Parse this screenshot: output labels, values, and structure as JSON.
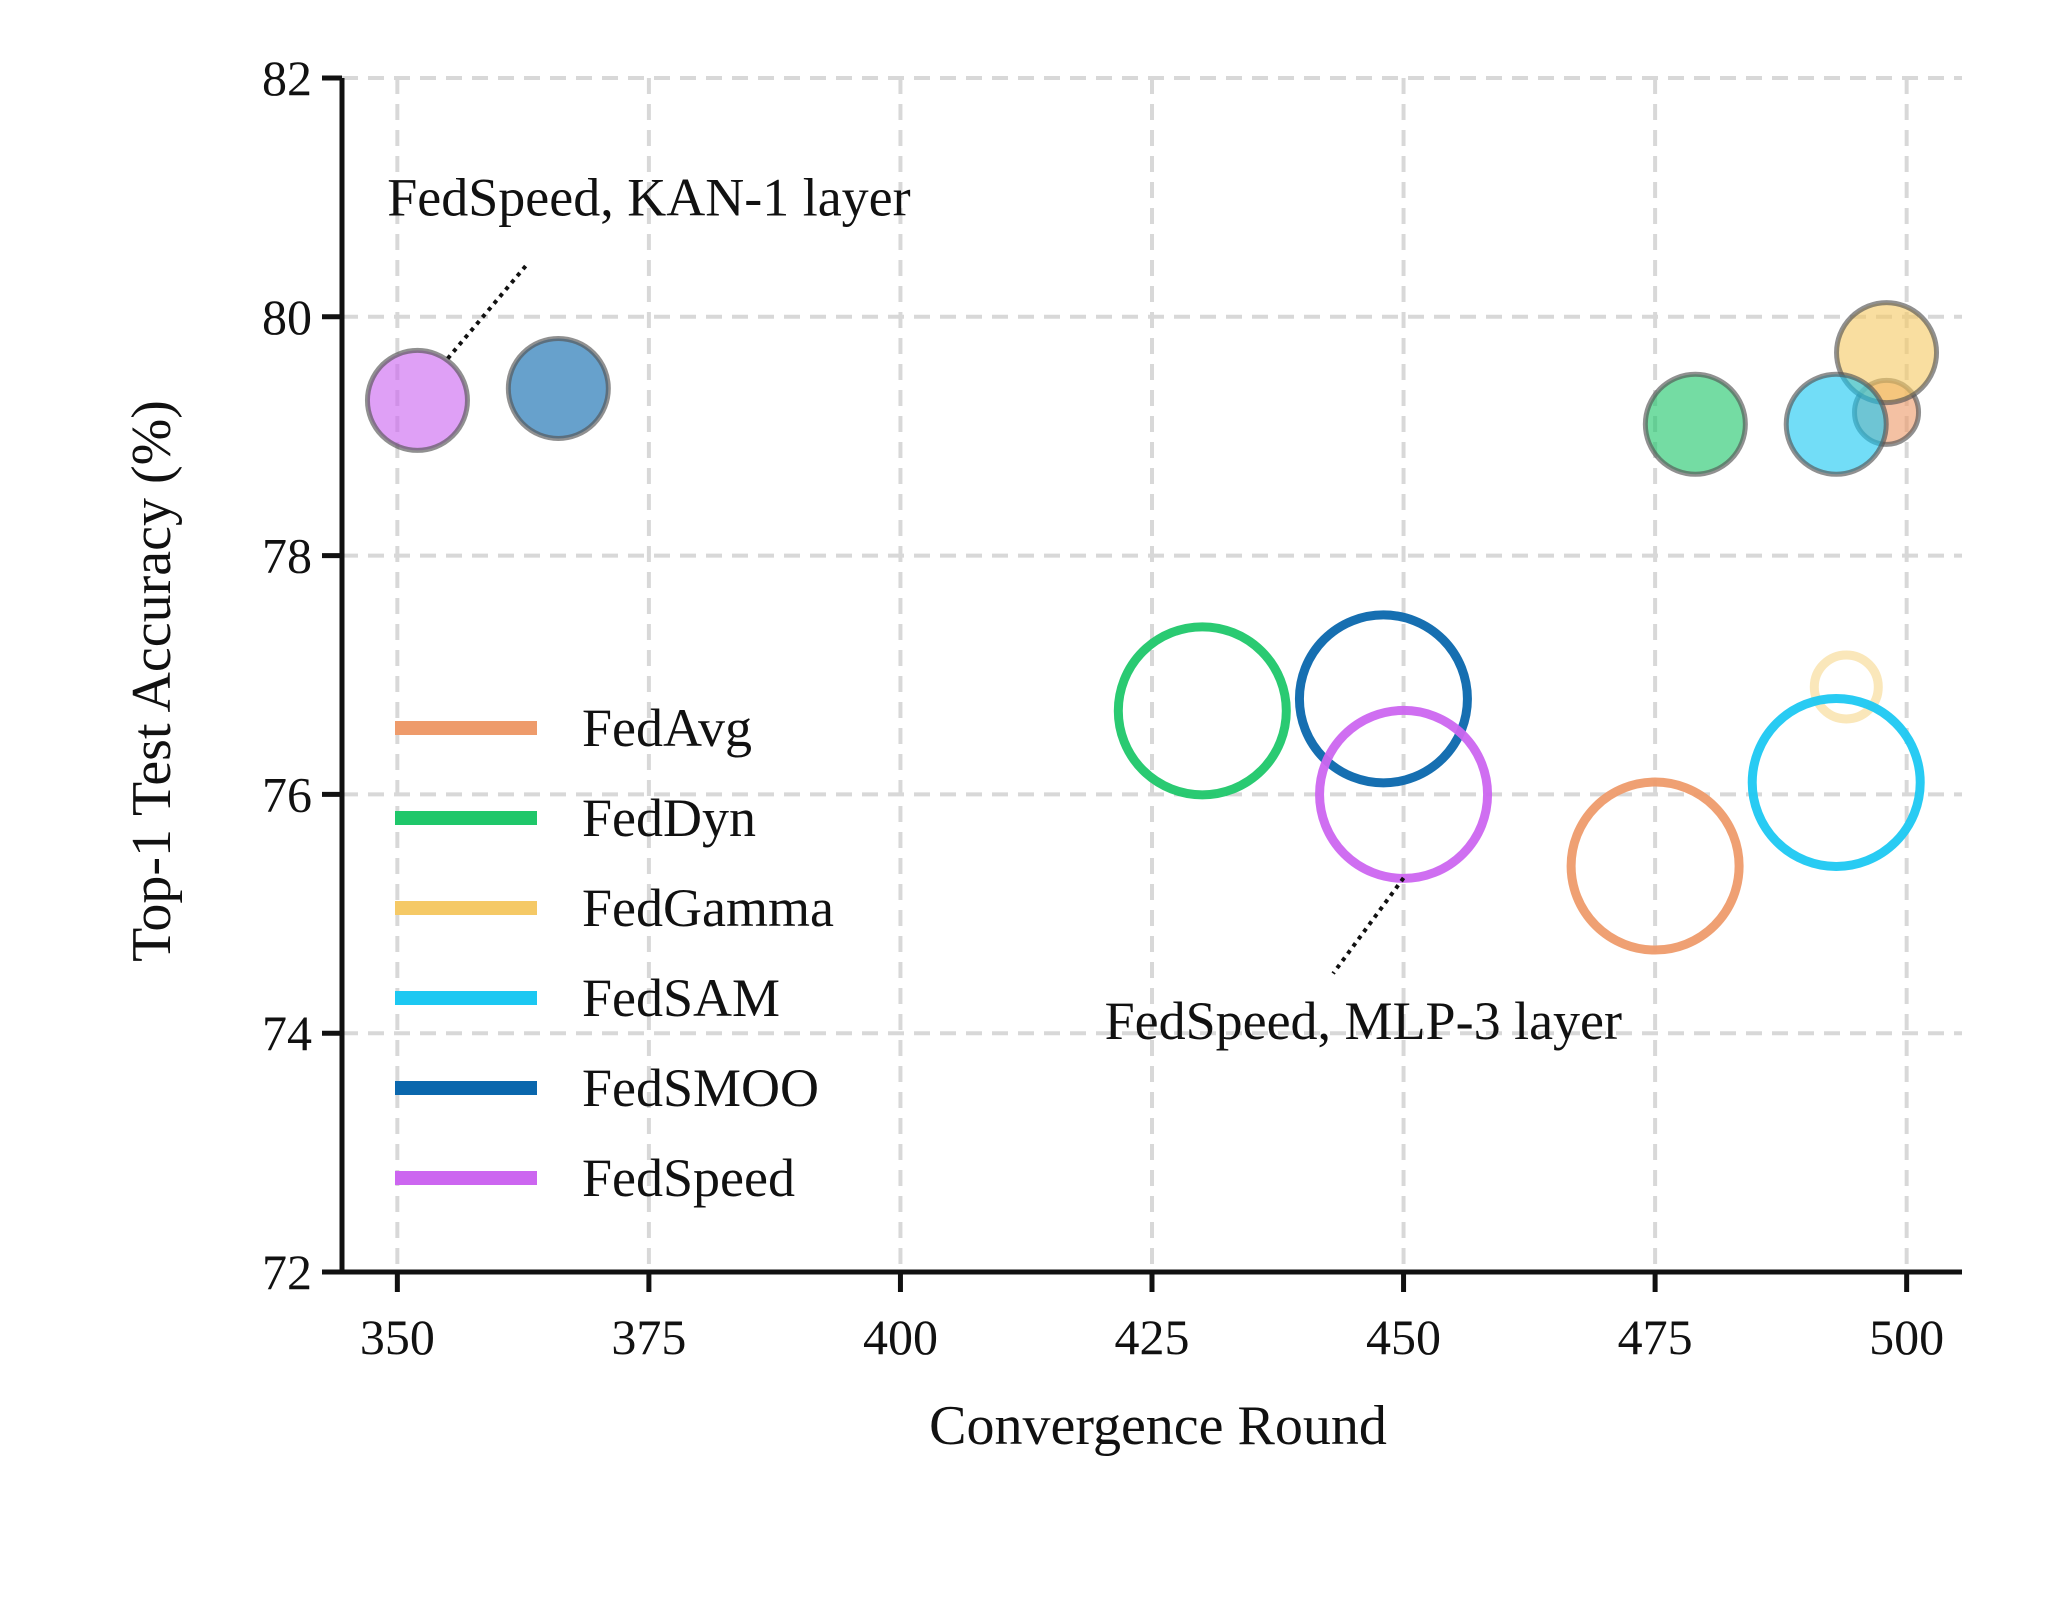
{
  "chart_data": {
    "type": "scatter",
    "title": "",
    "xlabel": "Convergence Round",
    "ylabel": "Top-1 Test Accuracy (%)",
    "xlim": [
      344.5,
      505.5
    ],
    "ylim": [
      72,
      82
    ],
    "xticks": [
      350,
      375,
      400,
      425,
      450,
      475,
      500
    ],
    "yticks": [
      72,
      74,
      76,
      78,
      80,
      82
    ],
    "grid": true,
    "legend_position": "lower-left",
    "series": [
      {
        "name": "FedAvg",
        "color": "#ee9b6b",
        "points": [
          {
            "x": 475,
            "y": 75.4,
            "style": "ring",
            "size": "large"
          },
          {
            "x": 498,
            "y": 79.2,
            "style": "filled",
            "size": "small"
          }
        ]
      },
      {
        "name": "FedDyn",
        "color": "#1fc76a",
        "points": [
          {
            "x": 430,
            "y": 76.7,
            "style": "ring",
            "size": "large"
          },
          {
            "x": 479,
            "y": 79.1,
            "style": "filled",
            "size": "medium"
          }
        ]
      },
      {
        "name": "FedGamma",
        "color": "#f5c966",
        "points": [
          {
            "x": 494,
            "y": 76.9,
            "style": "ring",
            "size": "small"
          },
          {
            "x": 498,
            "y": 79.7,
            "style": "filled",
            "size": "medium"
          }
        ]
      },
      {
        "name": "FedSAM",
        "color": "#1cc8f2",
        "points": [
          {
            "x": 493,
            "y": 76.1,
            "style": "ring",
            "size": "large"
          },
          {
            "x": 493,
            "y": 79.1,
            "style": "filled",
            "size": "medium"
          }
        ]
      },
      {
        "name": "FedSMOO",
        "color": "#0a67ad",
        "points": [
          {
            "x": 448,
            "y": 76.8,
            "style": "ring",
            "size": "large"
          },
          {
            "x": 366,
            "y": 79.4,
            "style": "filled",
            "size": "medium"
          }
        ]
      },
      {
        "name": "FedSpeed",
        "color": "#cc66f0",
        "points": [
          {
            "x": 450,
            "y": 76.0,
            "style": "ring",
            "size": "large"
          },
          {
            "x": 352,
            "y": 79.3,
            "style": "filled",
            "size": "medium"
          }
        ]
      }
    ],
    "annotations": [
      {
        "text": "FedSpeed, KAN-1 layer",
        "target_x": 355,
        "target_y": 79.65,
        "line_end_x": 363,
        "line_end_y": 80.45,
        "text_x": 349,
        "text_y": 80.85,
        "anchor": "start"
      },
      {
        "text": "FedSpeed, MLP-3 layer",
        "target_x": 450,
        "target_y": 75.3,
        "line_end_x": 443,
        "line_end_y": 74.5,
        "text_x": 446,
        "text_y": 73.95,
        "anchor": "middle"
      }
    ]
  }
}
